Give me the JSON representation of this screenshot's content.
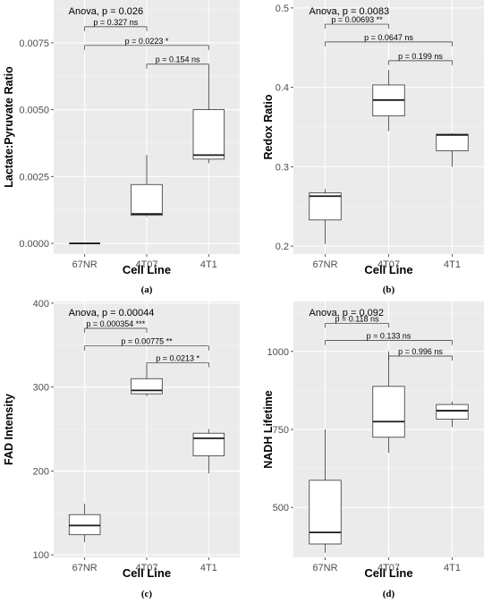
{
  "chart_data": [
    {
      "type": "box",
      "panel_label": "(a)",
      "ylabel": "Lactate:Pyruvate Ratio",
      "xlabel": "Cell Line",
      "categories": [
        "67NR",
        "4T07",
        "4T1"
      ],
      "ylim": [
        -0.0004,
        0.0091
      ],
      "yticks": [
        0,
        0.0025,
        0.005,
        0.0075
      ],
      "ytick_labels": [
        "0.0000",
        "0.0025",
        "0.0050",
        "0.0075"
      ],
      "annotation": "Anova, p = 0.026",
      "boxes": [
        {
          "category": "67NR",
          "min": 0,
          "q1": 0,
          "median": 0,
          "q3": 0,
          "max": 0
        },
        {
          "category": "4T07",
          "min": 0.001,
          "q1": 0.00105,
          "median": 0.0011,
          "q3": 0.0022,
          "max": 0.0033
        },
        {
          "category": "4T1",
          "min": 0.003,
          "q1": 0.00315,
          "median": 0.0033,
          "q3": 0.005,
          "max": 0.0066
        }
      ],
      "comparisons": [
        {
          "from": "67NR",
          "to": "4T07",
          "label": "p = 0.327 ns",
          "y": 0.0081
        },
        {
          "from": "67NR",
          "to": "4T1",
          "label": "p = 0.0223 *",
          "y": 0.0074
        },
        {
          "from": "4T07",
          "to": "4T1",
          "label": "p = 0.154 ns",
          "y": 0.0067
        }
      ]
    },
    {
      "type": "box",
      "panel_label": "(b)",
      "ylabel": "Redox Ratio",
      "xlabel": "Cell Line",
      "categories": [
        "67NR",
        "4T07",
        "4T1"
      ],
      "ylim": [
        0.19,
        0.51
      ],
      "yticks": [
        0.2,
        0.3,
        0.4,
        0.5
      ],
      "ytick_labels": [
        "0.2",
        "0.3",
        "0.4",
        "0.5"
      ],
      "annotation": "Anova, p = 0.0083",
      "boxes": [
        {
          "category": "67NR",
          "min": 0.203,
          "q1": 0.233,
          "median": 0.263,
          "q3": 0.267,
          "max": 0.272
        },
        {
          "category": "4T07",
          "min": 0.345,
          "q1": 0.364,
          "median": 0.384,
          "q3": 0.403,
          "max": 0.422
        },
        {
          "category": "4T1",
          "min": 0.3,
          "q1": 0.32,
          "median": 0.34,
          "q3": 0.341,
          "max": 0.342
        }
      ],
      "comparisons": [
        {
          "from": "67NR",
          "to": "4T07",
          "label": "p = 0.00693 **",
          "y": 0.4795
        },
        {
          "from": "67NR",
          "to": "4T1",
          "label": "p = 0.0647 ns",
          "y": 0.4572
        },
        {
          "from": "4T07",
          "to": "4T1",
          "label": "p = 0.199 ns",
          "y": 0.4335
        }
      ]
    },
    {
      "type": "box",
      "panel_label": "(c)",
      "ylabel": "FAD Intensity",
      "xlabel": "Cell Line",
      "categories": [
        "67NR",
        "4T07",
        "4T1"
      ],
      "ylim": [
        97,
        402
      ],
      "yticks": [
        100,
        200,
        300,
        400
      ],
      "ytick_labels": [
        "100",
        "200",
        "300",
        "400"
      ],
      "annotation": "Anova, p = 0.00044",
      "boxes": [
        {
          "category": "67NR",
          "min": 115,
          "q1": 124,
          "median": 135,
          "q3": 148,
          "max": 161
        },
        {
          "category": "4T07",
          "min": 289,
          "q1": 292,
          "median": 296,
          "q3": 310,
          "max": 325
        },
        {
          "category": "4T1",
          "min": 197,
          "q1": 218,
          "median": 239,
          "q3": 245,
          "max": 250
        }
      ],
      "comparisons": [
        {
          "from": "67NR",
          "to": "4T07",
          "label": "p = 0.000354 ***",
          "y": 370
        },
        {
          "from": "67NR",
          "to": "4T1",
          "label": "p = 0.00775 **",
          "y": 349
        },
        {
          "from": "4T07",
          "to": "4T1",
          "label": "p = 0.0213 *",
          "y": 329
        }
      ]
    },
    {
      "type": "box",
      "panel_label": "(d)",
      "ylabel": "NADH Lifetime",
      "xlabel": "Cell Line",
      "categories": [
        "67NR",
        "4T07",
        "4T1"
      ],
      "ylim": [
        340,
        1160
      ],
      "yticks": [
        500,
        750,
        1000
      ],
      "ytick_labels": [
        "500",
        "750",
        "1000"
      ],
      "annotation": "Anova, p = 0.092",
      "boxes": [
        {
          "category": "67NR",
          "min": 355,
          "q1": 383,
          "median": 420,
          "q3": 587,
          "max": 750
        },
        {
          "category": "4T07",
          "min": 675,
          "q1": 725,
          "median": 775,
          "q3": 888,
          "max": 1000
        },
        {
          "category": "4T1",
          "min": 757,
          "q1": 783,
          "median": 810,
          "q3": 830,
          "max": 840
        }
      ],
      "comparisons": [
        {
          "from": "67NR",
          "to": "4T07",
          "label": "p = 0.118 ns",
          "y": 1090
        },
        {
          "from": "67NR",
          "to": "4T1",
          "label": "p = 0.133 ns",
          "y": 1035
        },
        {
          "from": "4T07",
          "to": "4T1",
          "label": "p = 0.996 ns",
          "y": 985
        }
      ]
    }
  ],
  "colors": {
    "panel_background": "#ebebeb",
    "gridline_major": "#ffffff",
    "gridline_minor": "#f5f5f5",
    "box_fill": "#ffffff",
    "box_stroke": "#333333",
    "tick_text": "#4d4d4d"
  }
}
